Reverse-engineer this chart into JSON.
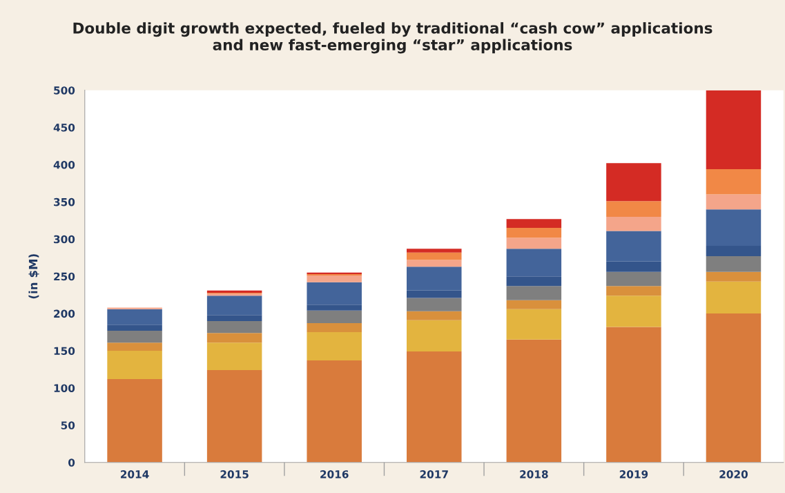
{
  "chart_data": {
    "type": "bar",
    "stacked": true,
    "title": "Double digit growth expected, fueled by traditional “cash cow” applications\nand new fast-emerging “star” applications",
    "ylabel": "(in $M)",
    "categories": [
      "2014",
      "2015",
      "2016",
      "2017",
      "2018",
      "2019",
      "2020"
    ],
    "series": [
      {
        "color": "#d97b3c",
        "values": [
          112,
          124,
          137,
          149,
          165,
          182,
          200
        ]
      },
      {
        "color": "#e3b43f",
        "values": [
          38,
          37,
          38,
          42,
          41,
          42,
          43
        ]
      },
      {
        "color": "#d9903c",
        "values": [
          11,
          13,
          12,
          12,
          12,
          13,
          13
        ]
      },
      {
        "color": "#7f7f7f",
        "values": [
          16,
          16,
          17,
          18,
          19,
          19,
          21
        ]
      },
      {
        "color": "#34558b",
        "values": [
          8,
          8,
          8,
          10,
          13,
          14,
          14
        ]
      },
      {
        "color": "#43649a",
        "values": [
          21,
          26,
          30,
          32,
          37,
          41,
          49
        ]
      },
      {
        "color": "#f4a58a",
        "values": [
          2,
          3,
          9,
          9,
          15,
          19,
          20
        ]
      },
      {
        "color": "#f18846",
        "values": [
          0,
          1,
          2,
          10,
          13,
          21,
          34
        ]
      },
      {
        "color": "#d42b24",
        "values": [
          0,
          3,
          2,
          5,
          12,
          51,
          106
        ]
      }
    ],
    "ylim": [
      0,
      500
    ],
    "yticks": [
      0,
      50,
      100,
      150,
      200,
      250,
      300,
      350,
      400,
      450,
      500
    ],
    "grid": false
  }
}
